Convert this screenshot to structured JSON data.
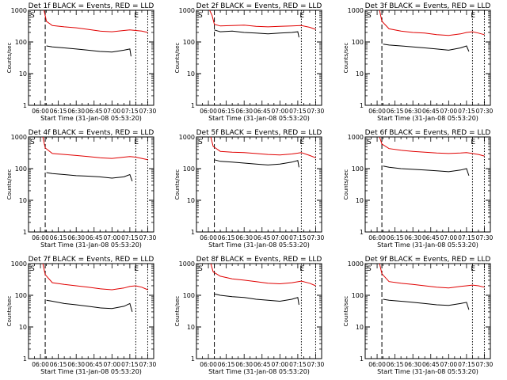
{
  "figure": {
    "start_marker": "S",
    "end_marker": "E"
  },
  "colors": {
    "events": "#000000",
    "lld": "#e00000",
    "axes": "#000000"
  },
  "chart_data": [
    {
      "type": "line",
      "title": "Det 1f BLACK = Events, RED = LLD",
      "xlabel": "Start Time (31-Jan-08 05:53:20)",
      "ylabel": "Counts/sec",
      "yscale": "log",
      "ylim": [
        1,
        1000
      ],
      "xlim": [
        "05:50",
        "07:35"
      ],
      "x_ticks": [
        "06:00",
        "06:15",
        "06:30",
        "06:45",
        "07:00",
        "07:15",
        "07:30"
      ],
      "y_ticks": [
        "1",
        "10",
        "100",
        "1000"
      ],
      "grid": false,
      "start_time": "06:04",
      "end_time": "07:20",
      "series": [
        {
          "color": "red",
          "x": [
            "06:03",
            "06:05",
            "06:10",
            "06:20",
            "06:30",
            "06:40",
            "06:50",
            "07:00",
            "07:10",
            "07:15",
            "07:20",
            "07:25",
            "07:30"
          ],
          "y": [
            1000,
            450,
            330,
            300,
            280,
            250,
            220,
            210,
            230,
            240,
            230,
            220,
            200
          ]
        },
        {
          "color": "black",
          "x": [
            "06:05",
            "06:10",
            "06:20",
            "06:30",
            "06:40",
            "06:50",
            "07:00",
            "07:10",
            "07:15",
            "07:16"
          ],
          "y": [
            75,
            70,
            65,
            60,
            55,
            50,
            48,
            55,
            60,
            35
          ]
        }
      ]
    },
    {
      "type": "line",
      "title": "Det 2f BLACK = Events, RED = LLD",
      "xlabel": "Start Time (31-Jan-08 05:53:20)",
      "ylabel": "Counts/sec",
      "yscale": "log",
      "ylim": [
        1,
        1000
      ],
      "xlim": [
        "05:50",
        "07:35"
      ],
      "x_ticks": [
        "06:00",
        "06:15",
        "06:30",
        "06:45",
        "07:00",
        "07:15",
        "07:30"
      ],
      "y_ticks": [
        "1",
        "10",
        "100",
        "1000"
      ],
      "grid": false,
      "start_time": "06:05",
      "end_time": "07:18",
      "series": [
        {
          "color": "red",
          "x": [
            "06:01",
            "06:03",
            "06:05",
            "06:10",
            "06:20",
            "06:30",
            "06:40",
            "06:50",
            "07:00",
            "07:10",
            "07:18",
            "07:25",
            "07:30"
          ],
          "y": [
            1000,
            700,
            360,
            320,
            330,
            340,
            310,
            300,
            310,
            320,
            330,
            290,
            250
          ]
        },
        {
          "color": "black",
          "x": [
            "06:05",
            "06:10",
            "06:20",
            "06:30",
            "06:40",
            "06:50",
            "07:00",
            "07:10",
            "07:15",
            "07:16"
          ],
          "y": [
            240,
            210,
            220,
            200,
            190,
            180,
            190,
            200,
            210,
            140
          ]
        }
      ]
    },
    {
      "type": "line",
      "title": "Det 3f BLACK = Events, RED = LLD",
      "xlabel": "Start Time (31-Jan-08 05:53:20)",
      "ylabel": "Counts/sec",
      "yscale": "log",
      "ylim": [
        1,
        1000
      ],
      "xlim": [
        "05:50",
        "07:35"
      ],
      "x_ticks": [
        "06:00",
        "06:15",
        "06:30",
        "06:45",
        "07:00",
        "07:15",
        "07:30"
      ],
      "y_ticks": [
        "1",
        "10",
        "100",
        "1000"
      ],
      "grid": false,
      "start_time": "06:04",
      "end_time": "07:20",
      "series": [
        {
          "color": "red",
          "x": [
            "06:02",
            "06:04",
            "06:10",
            "06:20",
            "06:30",
            "06:40",
            "06:50",
            "07:00",
            "07:10",
            "07:15",
            "07:20",
            "07:25",
            "07:30"
          ],
          "y": [
            1000,
            450,
            260,
            220,
            200,
            190,
            170,
            160,
            180,
            200,
            210,
            190,
            170
          ]
        },
        {
          "color": "black",
          "x": [
            "06:05",
            "06:10",
            "06:20",
            "06:30",
            "06:40",
            "06:50",
            "07:00",
            "07:10",
            "07:15",
            "07:17"
          ],
          "y": [
            85,
            80,
            75,
            70,
            65,
            60,
            55,
            65,
            75,
            50
          ]
        }
      ]
    },
    {
      "type": "line",
      "title": "Det 4f BLACK = Events, RED = LLD",
      "xlabel": "Start Time (31-Jan-08 05:53:20)",
      "ylabel": "Counts/sec",
      "yscale": "log",
      "ylim": [
        1,
        1000
      ],
      "xlim": [
        "05:50",
        "07:35"
      ],
      "x_ticks": [
        "06:00",
        "06:15",
        "06:30",
        "06:45",
        "07:00",
        "07:15",
        "07:30"
      ],
      "y_ticks": [
        "1",
        "10",
        "100",
        "1000"
      ],
      "grid": false,
      "start_time": "06:04",
      "end_time": "07:20",
      "series": [
        {
          "color": "red",
          "x": [
            "06:02",
            "06:04",
            "06:10",
            "06:20",
            "06:30",
            "06:40",
            "06:50",
            "07:00",
            "07:10",
            "07:15",
            "07:20",
            "07:25",
            "07:30"
          ],
          "y": [
            1000,
            450,
            300,
            280,
            260,
            240,
            220,
            210,
            230,
            240,
            230,
            210,
            190
          ]
        },
        {
          "color": "black",
          "x": [
            "06:05",
            "06:10",
            "06:20",
            "06:30",
            "06:40",
            "06:50",
            "07:00",
            "07:10",
            "07:15",
            "07:17"
          ],
          "y": [
            75,
            70,
            65,
            60,
            58,
            55,
            50,
            55,
            65,
            40
          ]
        }
      ]
    },
    {
      "type": "line",
      "title": "Det 5f BLACK = Events, RED = LLD",
      "xlabel": "Start Time (31-Jan-08 05:53:20)",
      "ylabel": "Counts/sec",
      "yscale": "log",
      "ylim": [
        1,
        1000
      ],
      "xlim": [
        "05:50",
        "07:35"
      ],
      "x_ticks": [
        "06:00",
        "06:15",
        "06:30",
        "06:45",
        "07:00",
        "07:15",
        "07:30"
      ],
      "y_ticks": [
        "1",
        "10",
        "100",
        "1000"
      ],
      "grid": false,
      "start_time": "06:05",
      "end_time": "07:18",
      "series": [
        {
          "color": "red",
          "x": [
            "06:02",
            "06:04",
            "06:10",
            "06:20",
            "06:30",
            "06:40",
            "06:50",
            "07:00",
            "07:10",
            "07:18",
            "07:25",
            "07:30"
          ],
          "y": [
            1000,
            500,
            350,
            330,
            320,
            300,
            280,
            270,
            290,
            320,
            260,
            220
          ]
        },
        {
          "color": "black",
          "x": [
            "06:05",
            "06:10",
            "06:20",
            "06:30",
            "06:40",
            "06:50",
            "07:00",
            "07:10",
            "07:15",
            "07:16"
          ],
          "y": [
            190,
            170,
            160,
            150,
            140,
            130,
            140,
            160,
            180,
            110
          ]
        }
      ]
    },
    {
      "type": "line",
      "title": "Det 6f BLACK = Events, RED = LLD",
      "xlabel": "Start Time (31-Jan-08 05:53:20)",
      "ylabel": "Counts/sec",
      "yscale": "log",
      "ylim": [
        1,
        1000
      ],
      "xlim": [
        "05:50",
        "07:35"
      ],
      "x_ticks": [
        "06:00",
        "06:15",
        "06:30",
        "06:45",
        "07:00",
        "07:15",
        "07:30"
      ],
      "y_ticks": [
        "1",
        "10",
        "100",
        "1000"
      ],
      "grid": false,
      "start_time": "06:04",
      "end_time": "07:20",
      "series": [
        {
          "color": "red",
          "x": [
            "06:02",
            "06:04",
            "06:10",
            "06:20",
            "06:30",
            "06:40",
            "06:50",
            "07:00",
            "07:10",
            "07:15",
            "07:20",
            "07:25",
            "07:30"
          ],
          "y": [
            1000,
            600,
            430,
            380,
            350,
            330,
            310,
            300,
            310,
            320,
            300,
            280,
            250
          ]
        },
        {
          "color": "black",
          "x": [
            "06:05",
            "06:10",
            "06:20",
            "06:30",
            "06:40",
            "06:50",
            "07:00",
            "07:10",
            "07:15",
            "07:17"
          ],
          "y": [
            120,
            110,
            100,
            95,
            90,
            85,
            80,
            90,
            100,
            60
          ]
        }
      ]
    },
    {
      "type": "line",
      "title": "Det 7f BLACK = Events, RED = LLD",
      "xlabel": "Start Time (31-Jan-08 05:53:20)",
      "ylabel": "Counts/sec",
      "yscale": "log",
      "ylim": [
        1,
        1000
      ],
      "xlim": [
        "05:50",
        "07:35"
      ],
      "x_ticks": [
        "06:00",
        "06:15",
        "06:30",
        "06:45",
        "07:00",
        "07:15",
        "07:30"
      ],
      "y_ticks": [
        "1",
        "10",
        "100",
        "1000"
      ],
      "grid": false,
      "start_time": "06:04",
      "end_time": "07:20",
      "series": [
        {
          "color": "red",
          "x": [
            "06:02",
            "06:04",
            "06:10",
            "06:20",
            "06:30",
            "06:40",
            "06:50",
            "07:00",
            "07:10",
            "07:15",
            "07:20",
            "07:25",
            "07:30"
          ],
          "y": [
            1000,
            450,
            250,
            220,
            200,
            180,
            160,
            150,
            170,
            190,
            200,
            180,
            150
          ]
        },
        {
          "color": "black",
          "x": [
            "06:05",
            "06:10",
            "06:20",
            "06:30",
            "06:40",
            "06:50",
            "07:00",
            "07:10",
            "07:15",
            "07:17"
          ],
          "y": [
            70,
            65,
            55,
            50,
            45,
            40,
            38,
            45,
            55,
            30
          ]
        }
      ]
    },
    {
      "type": "line",
      "title": "Det 8f BLACK = Events, RED = LLD",
      "xlabel": "Start Time (31-Jan-08 05:53:20)",
      "ylabel": "Counts/sec",
      "yscale": "log",
      "ylim": [
        1,
        1000
      ],
      "xlim": [
        "05:50",
        "07:35"
      ],
      "x_ticks": [
        "06:00",
        "06:15",
        "06:30",
        "06:45",
        "07:00",
        "07:15",
        "07:30"
      ],
      "y_ticks": [
        "1",
        "10",
        "100",
        "1000"
      ],
      "grid": false,
      "start_time": "06:05",
      "end_time": "07:18",
      "series": [
        {
          "color": "red",
          "x": [
            "06:02",
            "06:04",
            "06:10",
            "06:20",
            "06:30",
            "06:40",
            "06:50",
            "07:00",
            "07:10",
            "07:18",
            "07:25",
            "07:30"
          ],
          "y": [
            1000,
            550,
            400,
            330,
            300,
            270,
            240,
            230,
            250,
            280,
            240,
            200
          ]
        },
        {
          "color": "black",
          "x": [
            "06:05",
            "06:10",
            "06:20",
            "06:30",
            "06:40",
            "06:50",
            "07:00",
            "07:10",
            "07:15",
            "07:16"
          ],
          "y": [
            110,
            100,
            90,
            85,
            75,
            70,
            65,
            75,
            85,
            50
          ]
        }
      ]
    },
    {
      "type": "line",
      "title": "Det 9f BLACK = Events, RED = LLD",
      "xlabel": "Start Time (31-Jan-08 05:53:20)",
      "ylabel": "Counts/sec",
      "yscale": "log",
      "ylim": [
        1,
        1000
      ],
      "xlim": [
        "05:50",
        "07:35"
      ],
      "x_ticks": [
        "06:00",
        "06:15",
        "06:30",
        "06:45",
        "07:00",
        "07:15",
        "07:30"
      ],
      "y_ticks": [
        "1",
        "10",
        "100",
        "1000"
      ],
      "grid": false,
      "start_time": "06:04",
      "end_time": "07:20",
      "series": [
        {
          "color": "red",
          "x": [
            "06:02",
            "06:04",
            "06:10",
            "06:20",
            "06:30",
            "06:40",
            "06:50",
            "07:00",
            "07:10",
            "07:15",
            "07:20",
            "07:25",
            "07:30"
          ],
          "y": [
            1000,
            480,
            270,
            240,
            220,
            200,
            180,
            170,
            190,
            200,
            210,
            200,
            180
          ]
        },
        {
          "color": "black",
          "x": [
            "06:05",
            "06:10",
            "06:20",
            "06:30",
            "06:40",
            "06:50",
            "07:00",
            "07:10",
            "07:15",
            "07:17"
          ],
          "y": [
            75,
            70,
            65,
            60,
            55,
            50,
            48,
            55,
            60,
            35
          ]
        }
      ]
    }
  ]
}
